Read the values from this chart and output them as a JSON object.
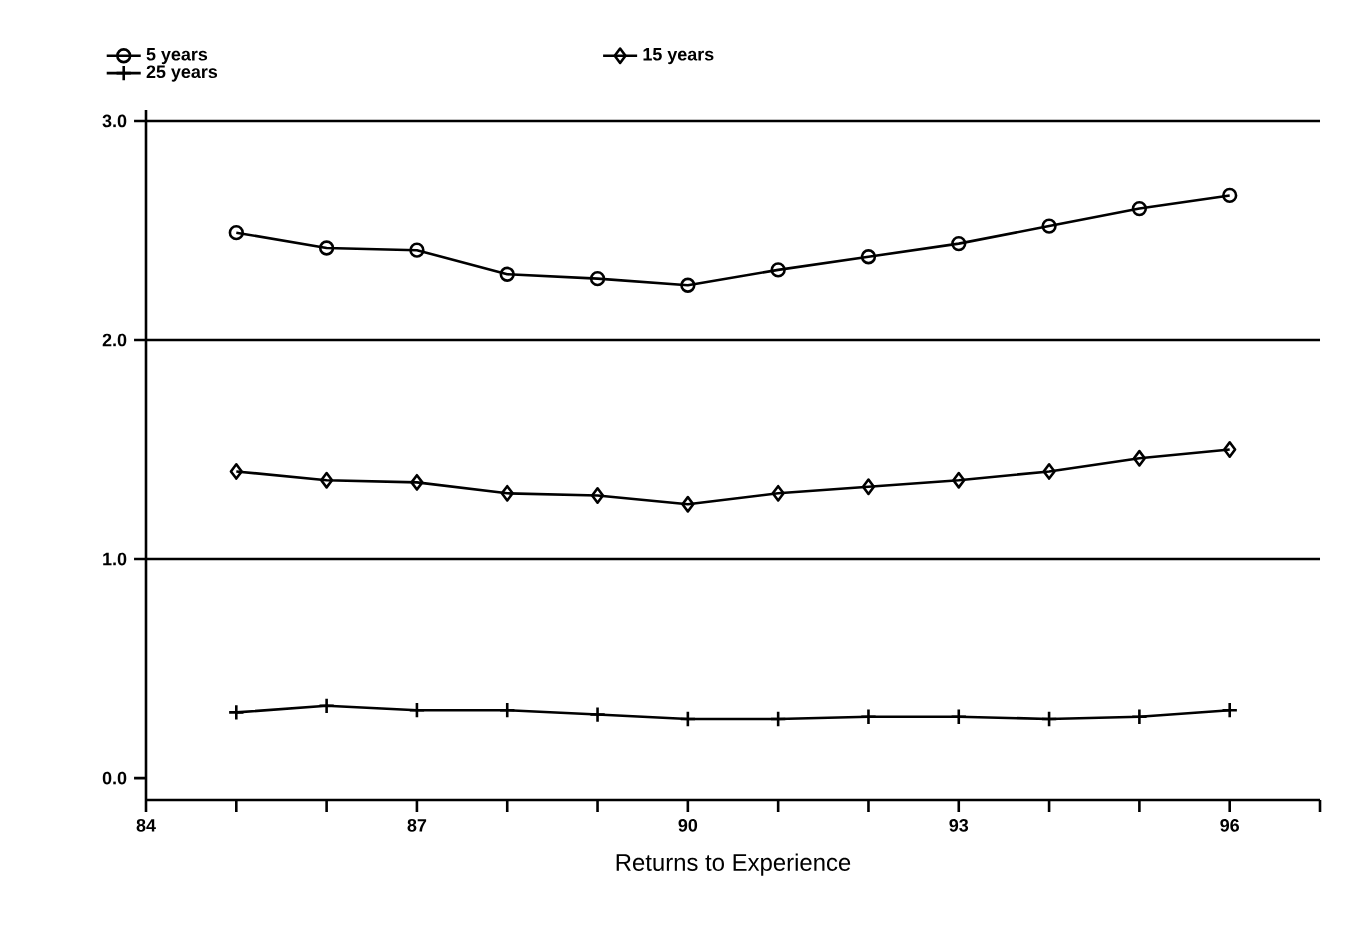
{
  "chart_data": {
    "type": "line",
    "xlabel": "Returns to Experience",
    "x": [
      85,
      86,
      87,
      88,
      89,
      90,
      91,
      92,
      93,
      94,
      95,
      96
    ],
    "series": [
      {
        "name": "5 years",
        "color": "#000000",
        "marker": "circle",
        "values": [
          2.49,
          2.42,
          2.41,
          2.3,
          2.28,
          2.25,
          2.32,
          2.38,
          2.44,
          2.52,
          2.6,
          2.66
        ]
      },
      {
        "name": "15 years",
        "color": "#000000",
        "marker": "diamond",
        "values": [
          1.4,
          1.36,
          1.35,
          1.3,
          1.29,
          1.25,
          1.3,
          1.33,
          1.36,
          1.4,
          1.46,
          1.5
        ]
      },
      {
        "name": "25 years",
        "color": "#000000",
        "marker": "cross",
        "values": [
          0.3,
          0.33,
          0.31,
          0.31,
          0.29,
          0.27,
          0.27,
          0.28,
          0.28,
          0.27,
          0.28,
          0.31
        ]
      }
    ],
    "xlim": [
      84,
      97
    ],
    "xticks": [
      84,
      {
        "value": 85,
        "label": null
      },
      {
        "value": 86,
        "label": null
      },
      87,
      {
        "value": 88,
        "label": null
      },
      {
        "value": 89,
        "label": null
      },
      90,
      {
        "value": 91,
        "label": null
      },
      {
        "value": 92,
        "label": null
      },
      93,
      {
        "value": 94,
        "label": null
      },
      {
        "value": 95,
        "label": null
      },
      96,
      {
        "value": 97,
        "label": null
      }
    ],
    "ylim": [
      -0.1,
      3.05
    ],
    "yticks": [
      {
        "value": 0,
        "label": "0.0"
      },
      {
        "value": 1,
        "label": "1.0"
      },
      {
        "value": 2,
        "label": "2.0"
      },
      {
        "value": 3,
        "label": "3.0"
      }
    ],
    "ref_lines": [
      {
        "axis": "y",
        "value": 1
      },
      {
        "axis": "y",
        "value": 2
      },
      {
        "axis": "y",
        "value": 3
      }
    ],
    "grid": false,
    "legend": "top",
    "line_style": "solid"
  }
}
